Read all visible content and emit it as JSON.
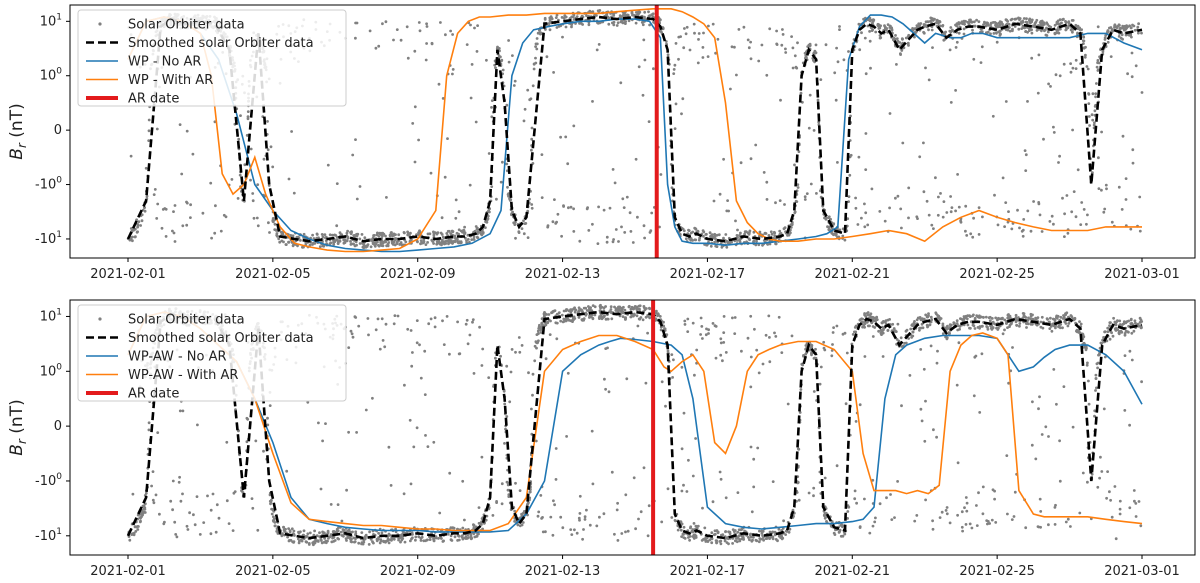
{
  "chart_data": [
    {
      "type": "scatter",
      "ylabel_main": "B",
      "ylabel_sub": "r",
      "ylabel_unit": " (nT)",
      "xlim": [
        "2021-02-01",
        "2021-03-01"
      ],
      "x_tick_labels": [
        "2021-02-01",
        "2021-02-05",
        "2021-02-09",
        "2021-02-13",
        "2021-02-17",
        "2021-02-21",
        "2021-02-25",
        "2021-03-01"
      ],
      "y_tick_labels": [
        "10^1",
        "10^0",
        "0",
        "-10^0",
        "-10^1"
      ],
      "y_tick_values": [
        10,
        1,
        0,
        -1,
        -10
      ],
      "yscale": "symlog",
      "legend_location": "upper left",
      "ar_date": "2021-02-15.6",
      "series": [
        {
          "name": "Solar Orbiter data",
          "style": "scatter",
          "color": "#808080"
        },
        {
          "name": "Smoothed solar Orbiter data",
          "style": "dashed",
          "color": "#000000",
          "x": [
            0,
            0.5,
            0.9,
            1.2,
            1.6,
            2.0,
            2.4,
            2.8,
            3.2,
            3.6,
            3.9,
            4.2,
            4.6,
            5.0,
            5.5,
            6.0,
            6.5,
            7.0,
            7.5,
            8.0,
            8.5,
            9.0,
            9.3,
            9.6,
            9.8,
            10.0,
            10.2,
            10.4,
            10.6,
            10.8,
            11.0,
            11.5,
            12.0,
            12.5,
            13.0,
            13.5,
            14.0,
            14.5,
            14.7,
            14.9,
            15.1,
            15.3,
            15.5,
            15.7,
            16.0,
            16.5,
            17.0,
            17.5,
            18.0,
            18.2,
            18.4,
            18.6,
            18.8,
            19.0,
            19.2,
            19.5,
            19.8,
            20.0,
            20.2,
            20.4,
            20.6,
            20.8,
            21.0,
            21.3,
            21.6,
            21.8,
            22.0,
            22.3,
            22.6,
            22.9,
            23.2,
            23.5,
            24.0,
            24.5,
            25.0,
            25.5,
            26.0,
            26.3,
            26.6,
            26.9,
            27.2,
            27.5,
            28.0
          ],
          "y": [
            -10,
            -2,
            8,
            11,
            9,
            10,
            9,
            3,
            -2,
            6,
            -1,
            -9,
            -10,
            -11,
            -10,
            -9,
            -11,
            -10,
            -10,
            -9,
            -10,
            -9,
            -9,
            -8,
            -6,
            -2,
            3,
            0.5,
            -3,
            -6,
            -4,
            9,
            10,
            11,
            12,
            11,
            12,
            11,
            8,
            3,
            -4,
            -8,
            -9,
            -8,
            -10,
            -11,
            -9,
            -10,
            -9,
            -8,
            -3,
            1,
            3,
            2,
            -3,
            -7,
            -8,
            3,
            7,
            9,
            8,
            6,
            7,
            3,
            5,
            7,
            8,
            9,
            5,
            7,
            8,
            8,
            7,
            9,
            8,
            7,
            9,
            6,
            -1,
            3,
            7,
            6,
            7
          ]
        },
        {
          "name": "WP - No AR",
          "style": "line",
          "color": "#1f77b4",
          "x": [
            0,
            0.5,
            1.0,
            1.5,
            2.0,
            2.5,
            3.0,
            3.5,
            4.0,
            4.5,
            5.0,
            5.5,
            6.0,
            6.5,
            7.0,
            7.5,
            8.0,
            8.5,
            9.0,
            9.5,
            10.0,
            10.3,
            10.6,
            10.9,
            11.2,
            11.6,
            12.0,
            12.5,
            13.0,
            13.5,
            14.0,
            14.4,
            14.7,
            14.9,
            15.1,
            15.3,
            15.6,
            16.0,
            16.5,
            17.0,
            17.5,
            18.0,
            18.5,
            19.0,
            19.3,
            19.6,
            19.9,
            20.2,
            20.5,
            20.8,
            21.1,
            21.4,
            21.7,
            22.0,
            22.3,
            22.7,
            23.0,
            23.3,
            23.6,
            24.0,
            24.5,
            25.0,
            25.5,
            26.0,
            26.5,
            27.0,
            27.5,
            28.0
          ],
          "y": [
            2,
            10,
            12,
            10,
            6,
            2,
            0.3,
            -1,
            -3,
            -7,
            -10,
            -13,
            -15,
            -16,
            -17,
            -17,
            -16,
            -15,
            -14,
            -12,
            -8,
            -3,
            1,
            4,
            7,
            8,
            9,
            10,
            10,
            11,
            11,
            10,
            5,
            -1,
            -6,
            -11,
            -12,
            -12,
            -13,
            -12,
            -12,
            -11,
            -10,
            -9,
            -8,
            -6,
            2,
            8,
            13,
            13,
            12,
            9,
            6,
            4,
            6,
            5,
            5,
            6,
            6,
            5,
            5,
            5,
            5,
            5,
            6,
            6,
            4,
            3
          ]
        },
        {
          "name": "WP - With AR",
          "style": "line",
          "color": "#ff7f0e",
          "x": [
            0,
            0.5,
            1.0,
            1.5,
            2.0,
            2.3,
            2.6,
            2.9,
            3.2,
            3.5,
            3.8,
            4.2,
            4.6,
            5.0,
            5.5,
            6.0,
            6.5,
            7.0,
            7.5,
            8.0,
            8.5,
            8.8,
            9.1,
            9.4,
            9.7,
            10.0,
            10.5,
            11.0,
            11.5,
            12.0,
            12.5,
            13.0,
            13.5,
            14.0,
            14.5,
            15.0,
            15.3,
            15.6,
            15.9,
            16.2,
            16.5,
            16.8,
            17.1,
            17.4,
            17.7,
            18.0,
            18.5,
            19.0,
            19.5,
            20.0,
            20.5,
            21.0,
            21.5,
            22.0,
            22.5,
            23.0,
            23.5,
            24.0,
            24.5,
            25.0,
            25.5,
            26.0,
            26.5,
            27.0,
            27.5,
            28.0
          ],
          "y": [
            2,
            10,
            12,
            10,
            6,
            1,
            -0.8,
            -1.5,
            -1,
            -0.5,
            -1.5,
            -6,
            -12,
            -14,
            -16,
            -17,
            -17,
            -16,
            -15,
            -10,
            -3,
            1,
            6,
            10,
            12,
            12,
            13,
            13,
            14,
            14,
            14,
            14,
            15,
            16,
            17,
            17,
            15,
            12,
            9,
            5,
            0.5,
            -2,
            -5,
            -8,
            -10,
            -11,
            -11,
            -10,
            -10,
            -9,
            -8,
            -7,
            -8,
            -11,
            -6,
            -4,
            -3,
            -4,
            -5,
            -6,
            -7,
            -7,
            -7,
            -6,
            -6,
            -6
          ]
        }
      ],
      "legend": {
        "solar": "Solar Orbiter data",
        "smoothed": "Smoothed solar Orbiter data",
        "noar": "WP - No AR",
        "withar": "WP - With AR",
        "ar": "AR date"
      }
    },
    {
      "type": "scatter",
      "ylabel_main": "B",
      "ylabel_sub": "r",
      "ylabel_unit": " (nT)",
      "xlim": [
        "2021-02-01",
        "2021-03-01"
      ],
      "x_tick_labels": [
        "2021-02-01",
        "2021-02-05",
        "2021-02-09",
        "2021-02-13",
        "2021-02-17",
        "2021-02-21",
        "2021-02-25",
        "2021-03-01"
      ],
      "y_tick_labels": [
        "10^1",
        "10^0",
        "0",
        "-10^0",
        "-10^1"
      ],
      "y_tick_values": [
        10,
        1,
        0,
        -1,
        -10
      ],
      "yscale": "symlog",
      "legend_location": "upper left",
      "ar_date": "2021-02-15.5",
      "series": [
        {
          "name": "Solar Orbiter data",
          "style": "scatter",
          "color": "#808080"
        },
        {
          "name": "Smoothed solar Orbiter data",
          "style": "dashed",
          "color": "#000000",
          "x": [
            0,
            0.5,
            0.9,
            1.2,
            1.6,
            2.0,
            2.4,
            2.8,
            3.2,
            3.6,
            3.9,
            4.2,
            4.6,
            5.0,
            5.5,
            6.0,
            6.5,
            7.0,
            7.5,
            8.0,
            8.5,
            9.0,
            9.3,
            9.6,
            9.8,
            10.0,
            10.2,
            10.4,
            10.6,
            10.8,
            11.0,
            11.5,
            12.0,
            12.5,
            13.0,
            13.5,
            14.0,
            14.5,
            14.7,
            14.9,
            15.1,
            15.3,
            15.5,
            15.7,
            16.0,
            16.5,
            17.0,
            17.5,
            18.0,
            18.2,
            18.4,
            18.6,
            18.8,
            19.0,
            19.2,
            19.5,
            19.8,
            20.0,
            20.2,
            20.4,
            20.6,
            20.8,
            21.0,
            21.3,
            21.6,
            21.8,
            22.0,
            22.3,
            22.6,
            22.9,
            23.2,
            23.5,
            24.0,
            24.5,
            25.0,
            25.5,
            26.0,
            26.3,
            26.6,
            26.9,
            27.2,
            27.5,
            28.0
          ],
          "y": [
            -10,
            -2,
            8,
            11,
            9,
            10,
            9,
            3,
            -2,
            6,
            -1,
            -9,
            -10,
            -11,
            -10,
            -9,
            -11,
            -10,
            -10,
            -9,
            -10,
            -9,
            -9,
            -8,
            -6,
            -2,
            3,
            0.5,
            -3,
            -6,
            -4,
            9,
            10,
            11,
            12,
            11,
            12,
            11,
            8,
            3,
            -4,
            -8,
            -9,
            -8,
            -10,
            -11,
            -9,
            -10,
            -9,
            -8,
            -3,
            1,
            3,
            2,
            -3,
            -7,
            -8,
            3,
            7,
            9,
            8,
            6,
            7,
            3,
            5,
            7,
            8,
            9,
            5,
            7,
            8,
            8,
            7,
            9,
            8,
            7,
            9,
            6,
            -1,
            3,
            7,
            6,
            7
          ]
        },
        {
          "name": "WP-AW - No AR",
          "style": "line",
          "color": "#1f77b4",
          "x": [
            0,
            0.5,
            1.0,
            1.5,
            2.0,
            2.5,
            3.0,
            3.5,
            4.0,
            4.5,
            5.0,
            5.5,
            6.0,
            6.5,
            7.0,
            7.5,
            8.0,
            8.5,
            9.0,
            9.5,
            10.0,
            10.5,
            11.0,
            11.5,
            12.0,
            12.5,
            13.0,
            13.3,
            13.6,
            14.0,
            14.5,
            15.0,
            15.3,
            15.6,
            16.0,
            16.5,
            17.0,
            17.5,
            18.0,
            18.5,
            19.0,
            19.5,
            20.0,
            20.3,
            20.6,
            20.9,
            21.2,
            21.5,
            22.0,
            22.5,
            23.0,
            23.5,
            24.0,
            24.3,
            24.6,
            25.0,
            25.3,
            25.6,
            26.0,
            26.5,
            27.0,
            27.5,
            28.0
          ],
          "y": [
            2,
            10,
            12,
            10,
            6,
            3,
            1.5,
            0.5,
            -0.3,
            -2,
            -5,
            -6,
            -7,
            -7.5,
            -8,
            -8,
            -8,
            -8.5,
            -8.5,
            -8.5,
            -8.5,
            -8,
            -4,
            -1,
            1,
            2,
            3,
            3.5,
            4,
            3.8,
            3.5,
            3,
            2,
            0.5,
            -3,
            -6,
            -7,
            -7.5,
            -7,
            -6.5,
            -6,
            -6,
            -5.5,
            -5,
            -3,
            0.5,
            2,
            3,
            4,
            4.5,
            4.5,
            4.5,
            4,
            2,
            1,
            1.2,
            1.8,
            2.5,
            3,
            3,
            2,
            1,
            0.4
          ]
        },
        {
          "name": "WP-AW - With AR",
          "style": "line",
          "color": "#ff7f0e",
          "x": [
            0,
            0.5,
            1.0,
            1.5,
            2.0,
            2.5,
            3.0,
            3.5,
            4.0,
            4.5,
            5.0,
            5.5,
            6.0,
            6.5,
            7.0,
            7.5,
            8.0,
            8.5,
            9.0,
            9.5,
            10.0,
            10.5,
            11.0,
            11.5,
            12.0,
            12.5,
            13.0,
            13.5,
            14.0,
            14.5,
            14.8,
            15.0,
            15.3,
            15.6,
            15.9,
            16.2,
            16.5,
            16.8,
            17.1,
            17.4,
            17.7,
            18.0,
            18.5,
            19.0,
            19.5,
            20.0,
            20.3,
            20.6,
            20.9,
            21.2,
            21.5,
            21.8,
            22.1,
            22.4,
            22.7,
            23.0,
            23.3,
            23.6,
            24.0,
            24.3,
            24.6,
            25.0,
            25.3,
            25.6,
            26.0,
            26.5,
            27.0,
            27.5,
            28.0
          ],
          "y": [
            2,
            10,
            12,
            10,
            6,
            3,
            1.5,
            0.5,
            -0.5,
            -2.5,
            -5,
            -5.5,
            -6,
            -6.5,
            -6.5,
            -7,
            -7.5,
            -7.5,
            -8,
            -8,
            -8,
            -6,
            -2,
            1,
            2.5,
            3.5,
            4.5,
            4.5,
            3.5,
            2.5,
            1.2,
            1,
            1.5,
            2,
            1,
            -0.3,
            -0.5,
            0,
            1,
            2,
            2.5,
            3,
            3.5,
            3.5,
            2.5,
            1,
            -0.5,
            -1.5,
            -1.5,
            -1.5,
            -1.7,
            -1.5,
            -1.7,
            -1.2,
            1,
            3,
            4.5,
            5,
            4,
            2,
            -1.5,
            -4,
            -4.5,
            -4.5,
            -4.5,
            -4.5,
            -5,
            -5.5,
            -6
          ]
        }
      ],
      "legend": {
        "solar": "Solar Orbiter data",
        "smoothed": "Smoothed solar Orbiter data",
        "noar": "WP-AW - No AR",
        "withar": "WP-AW - With AR",
        "ar": "AR date"
      }
    }
  ]
}
